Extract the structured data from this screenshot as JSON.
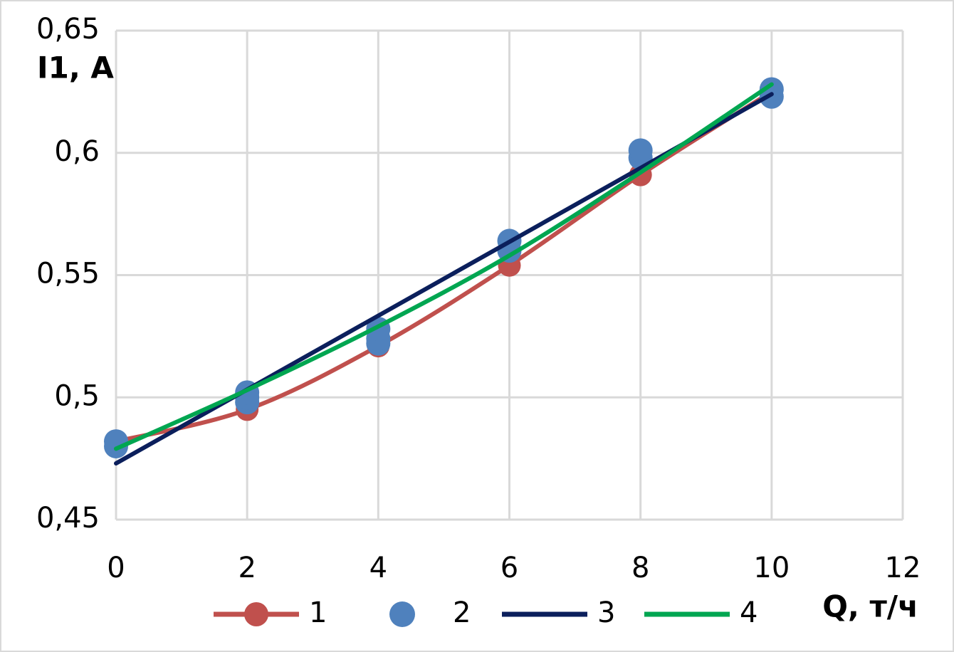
{
  "chart_data": {
    "type": "line",
    "x_label": "Q, т/ч",
    "y_label": "I1, A",
    "xlim": [
      0,
      12
    ],
    "xticks": [
      0,
      2,
      4,
      6,
      8,
      10,
      12
    ],
    "ylim": [
      0.45,
      0.65
    ],
    "yticks": [
      {
        "value": 0.45,
        "label": "0,45"
      },
      {
        "value": 0.5,
        "label": "0,5"
      },
      {
        "value": 0.55,
        "label": "0,55"
      },
      {
        "value": 0.6,
        "label": "0,6"
      },
      {
        "value": 0.65,
        "label": "0,65"
      }
    ],
    "grid": true,
    "legend": "bottom",
    "series": [
      {
        "name": "1",
        "color": "#c0504d",
        "mode": "line+markers",
        "smooth": true,
        "x": [
          0,
          2,
          4,
          6,
          8,
          10
        ],
        "values": [
          0.482,
          0.495,
          0.521,
          0.554,
          0.591,
          0.625
        ]
      },
      {
        "name": "2",
        "color": "#4f81bd",
        "mode": "markers",
        "smooth": false,
        "x": [
          0,
          0,
          2,
          2,
          2,
          4,
          4,
          4,
          6,
          6,
          8,
          8,
          10,
          10
        ],
        "values": [
          0.48,
          0.482,
          0.498,
          0.5,
          0.502,
          0.522,
          0.524,
          0.528,
          0.56,
          0.564,
          0.598,
          0.601,
          0.623,
          0.626
        ]
      },
      {
        "name": "3",
        "color": "#0b1f5c",
        "mode": "line",
        "smooth": false,
        "x": [
          0,
          10
        ],
        "values": [
          0.473,
          0.624
        ]
      },
      {
        "name": "4",
        "color": "#00a651",
        "mode": "line",
        "smooth": true,
        "x": [
          0,
          2,
          4,
          6,
          8,
          10
        ],
        "values": [
          0.479,
          0.503,
          0.529,
          0.558,
          0.592,
          0.628
        ]
      }
    ]
  }
}
